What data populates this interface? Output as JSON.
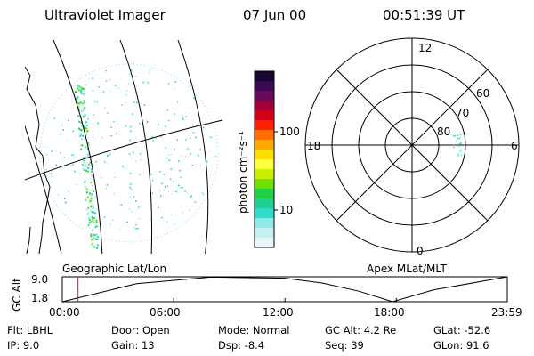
{
  "header": {
    "instrument": "Ultraviolet Imager",
    "date": "07 Jun 00",
    "time": "00:51:39 UT"
  },
  "colors": {
    "background": "#ffffff",
    "foreground": "#000000",
    "time_marker": "#ff0000",
    "aurora": "#33ddaa"
  },
  "colorbar": {
    "unit_label": "photon cm⁻²s⁻¹",
    "ticks": [
      "100",
      "10"
    ],
    "colors": [
      "#1a0530",
      "#3a0a55",
      "#6a0a5a",
      "#a0003a",
      "#d00018",
      "#ff2000",
      "#ff7000",
      "#ffa800",
      "#ffdd00",
      "#ffff40",
      "#c8f000",
      "#70e000",
      "#20d040",
      "#20d090",
      "#30dcc8",
      "#90e8e8",
      "#c8f0f0",
      "#e8f8f8"
    ]
  },
  "geo_panel": {
    "label": "Geographic Lat/Lon"
  },
  "polar_panel": {
    "label": "Apex MLat/MLT",
    "mlt_labels": {
      "top": "12",
      "left": "18",
      "right": "6",
      "bottom": "0"
    },
    "lat_labels": [
      "60",
      "70",
      "80"
    ]
  },
  "gc_alt_plot": {
    "ylabel": "GC Alt",
    "y_ticks": [
      "9.0",
      "1.8"
    ],
    "x_ticks": [
      "00:00",
      "06:00",
      "12:00",
      "18:00",
      "23:59"
    ],
    "current_time_marker": "00:51"
  },
  "chart_data": {
    "type": "line",
    "title": "",
    "xlabel": "",
    "ylabel": "GC Alt",
    "x": [
      "00:00",
      "04:00",
      "08:00",
      "12:00",
      "14:00",
      "16:00",
      "17:48",
      "20:00",
      "23:59"
    ],
    "series": [
      {
        "values": [
          1.8,
          7.0,
          8.9,
          8.6,
          7.2,
          4.8,
          1.8,
          5.2,
          9.0
        ]
      }
    ],
    "ylim": [
      1.8,
      9.0
    ]
  },
  "info": {
    "flt": "Flt: LBHL",
    "ip": "IP:  9.0",
    "door": "Door: Open",
    "gain": "Gain: 13",
    "mode": "Mode: Normal",
    "dsp": "Dsp:   -8.4",
    "gc_alt": "GC Alt: 4.2 Re",
    "seq": "Seq: 39",
    "glat": "GLat: -52.6",
    "glon": "GLon:  91.6"
  }
}
